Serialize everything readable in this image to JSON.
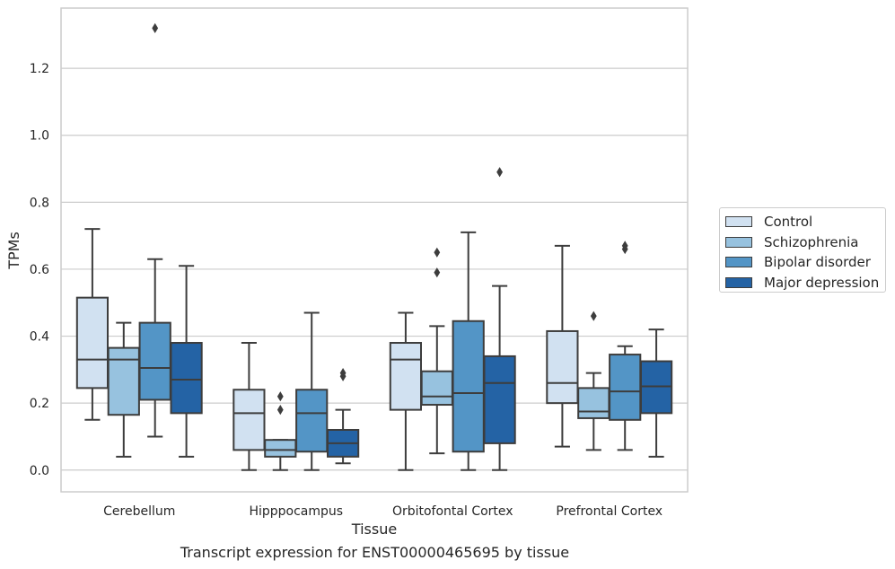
{
  "chart_data": {
    "type": "box",
    "xlabel": "Tissue",
    "ylabel": "TPMs",
    "caption": "Transcript expression for ENST00000465695 by tissue",
    "ylim": [
      -0.065,
      1.38
    ],
    "yticks": [
      "0.0",
      "0.2",
      "0.4",
      "0.6",
      "0.8",
      "1.0",
      "1.2"
    ],
    "grid": "horizontal",
    "legend_position": "right",
    "categories": [
      "Cerebellum",
      "Hipppocampus",
      "Orbitofontal Cortex",
      "Prefrontal Cortex"
    ],
    "series": [
      {
        "name": "Control",
        "color": "#d1e1f1",
        "boxes": [
          {
            "min": 0.15,
            "q1": 0.245,
            "median": 0.33,
            "q3": 0.515,
            "max": 0.72,
            "outliers": []
          },
          {
            "min": 0.0,
            "q1": 0.06,
            "median": 0.17,
            "q3": 0.24,
            "max": 0.38,
            "outliers": []
          },
          {
            "min": 0.0,
            "q1": 0.18,
            "median": 0.33,
            "q3": 0.38,
            "max": 0.47,
            "outliers": []
          },
          {
            "min": 0.07,
            "q1": 0.2,
            "median": 0.26,
            "q3": 0.415,
            "max": 0.67,
            "outliers": []
          }
        ]
      },
      {
        "name": "Schizophrenia",
        "color": "#97c2df",
        "boxes": [
          {
            "min": 0.04,
            "q1": 0.165,
            "median": 0.33,
            "q3": 0.365,
            "max": 0.44,
            "outliers": []
          },
          {
            "min": 0.0,
            "q1": 0.04,
            "median": 0.06,
            "q3": 0.09,
            "max": 0.09,
            "outliers": [
              0.18,
              0.22
            ]
          },
          {
            "min": 0.05,
            "q1": 0.195,
            "median": 0.22,
            "q3": 0.295,
            "max": 0.43,
            "outliers": [
              0.59,
              0.65
            ]
          },
          {
            "min": 0.06,
            "q1": 0.155,
            "median": 0.175,
            "q3": 0.245,
            "max": 0.29,
            "outliers": [
              0.46
            ]
          }
        ]
      },
      {
        "name": "Bipolar disorder",
        "color": "#5395c6",
        "boxes": [
          {
            "min": 0.1,
            "q1": 0.21,
            "median": 0.305,
            "q3": 0.44,
            "max": 0.63,
            "outliers": [
              1.32
            ]
          },
          {
            "min": 0.0,
            "q1": 0.055,
            "median": 0.17,
            "q3": 0.24,
            "max": 0.47,
            "outliers": []
          },
          {
            "min": 0.0,
            "q1": 0.055,
            "median": 0.23,
            "q3": 0.445,
            "max": 0.71,
            "outliers": []
          },
          {
            "min": 0.06,
            "q1": 0.15,
            "median": 0.235,
            "q3": 0.345,
            "max": 0.37,
            "outliers": [
              0.66,
              0.67
            ]
          }
        ]
      },
      {
        "name": "Major depression",
        "color": "#2463a5",
        "boxes": [
          {
            "min": 0.04,
            "q1": 0.17,
            "median": 0.27,
            "q3": 0.38,
            "max": 0.61,
            "outliers": []
          },
          {
            "min": 0.02,
            "q1": 0.04,
            "median": 0.08,
            "q3": 0.12,
            "max": 0.18,
            "outliers": [
              0.28,
              0.29
            ]
          },
          {
            "min": 0.0,
            "q1": 0.08,
            "median": 0.26,
            "q3": 0.34,
            "max": 0.55,
            "outliers": [
              0.89
            ]
          },
          {
            "min": 0.04,
            "q1": 0.17,
            "median": 0.25,
            "q3": 0.325,
            "max": 0.42,
            "outliers": []
          }
        ]
      }
    ]
  }
}
